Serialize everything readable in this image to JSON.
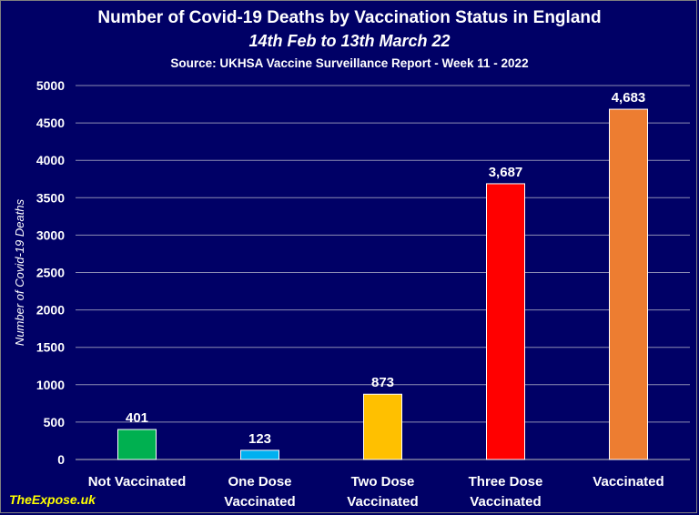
{
  "chart_data": {
    "type": "bar",
    "title": "Number of Covid-19 Deaths by Vaccination Status in England",
    "subtitle": "14th Feb to 13th March 22",
    "source": "Source: UKHSA Vaccine Surveillance Report - Week 11 - 2022",
    "xlabel": "",
    "ylabel": "Number of Covid-19 Deaths",
    "ylim": [
      0,
      5000
    ],
    "yticks": [
      0,
      500,
      1000,
      1500,
      2000,
      2500,
      3000,
      3500,
      4000,
      4500,
      5000
    ],
    "grid": true,
    "categories": [
      [
        "Not Vaccinated"
      ],
      [
        "One Dose",
        "Vaccinated"
      ],
      [
        "Two Dose",
        "Vaccinated"
      ],
      [
        "Three Dose",
        "Vaccinated"
      ],
      [
        "Vaccinated"
      ]
    ],
    "values": [
      401,
      123,
      873,
      3687,
      4683
    ],
    "data_labels": [
      "401",
      "123",
      "873",
      "3,687",
      "4,683"
    ],
    "colors": [
      "#00b050",
      "#00b0f0",
      "#ffc000",
      "#ff0000",
      "#ed7d31"
    ]
  },
  "branding": "TheExpose.uk"
}
